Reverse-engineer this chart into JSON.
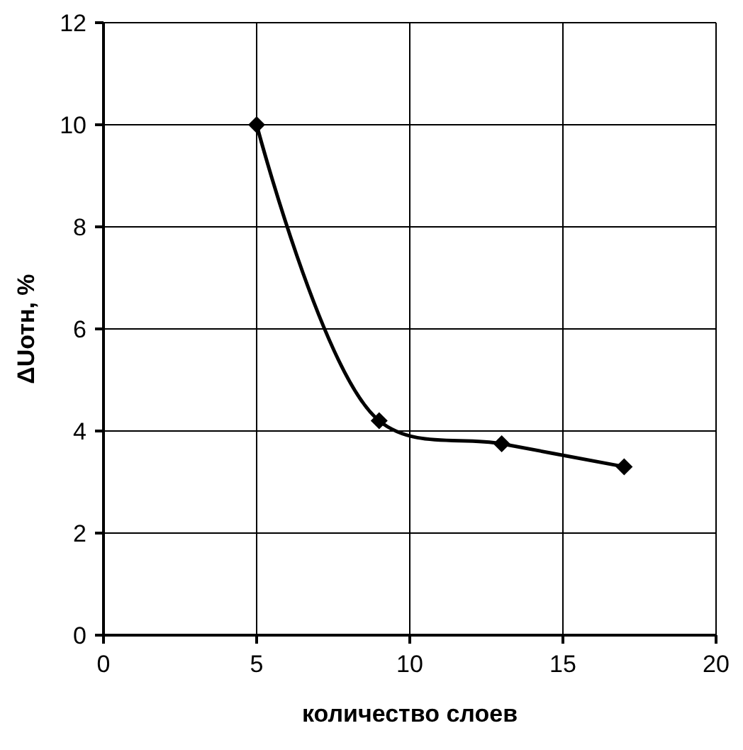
{
  "chart_data": {
    "type": "line",
    "xlabel": "количество слоев",
    "ylabel": "ΔUотн, %",
    "x": [
      5,
      9,
      13,
      17
    ],
    "series": [
      {
        "color": "#000000",
        "values": [
          10,
          4.2,
          3.75,
          3.3
        ]
      }
    ],
    "xlim": [
      0,
      20
    ],
    "xticks": [
      0,
      5,
      10,
      15,
      20
    ],
    "ylim": [
      0,
      12
    ],
    "yticks": [
      0,
      2,
      4,
      6,
      8,
      10,
      12
    ],
    "grid": true,
    "marker": "diamond",
    "line_style": "solid"
  }
}
